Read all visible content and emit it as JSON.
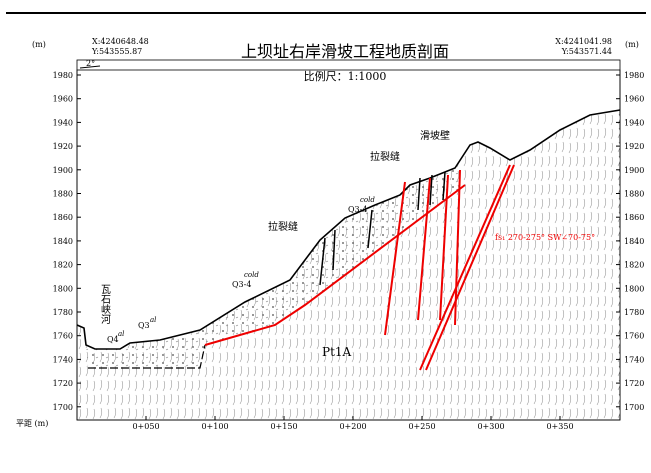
{
  "header": {
    "title": "上坝址右岸滑坡工程地质剖面",
    "scale": "比例尺：1:1000",
    "left_coord_x": "X:4240648.48",
    "left_coord_y": "Y:543555.87",
    "right_coord_x": "X:4241041.98",
    "right_coord_y": "Y:543571.44",
    "left_unit": "(m)",
    "right_unit": "(m)"
  },
  "axes": {
    "elevations": [
      1980,
      1960,
      1940,
      1920,
      1900,
      1880,
      1860,
      1840,
      1820,
      1800,
      1780,
      1760,
      1740,
      1720,
      1700
    ],
    "distance_label": "平距 (m)",
    "distances": [
      "0+050",
      "0+100",
      "0+150",
      "0+200",
      "0+250",
      "0+300",
      "0+350"
    ]
  },
  "annotations": {
    "dip": "2°",
    "scarp": "滑坡壁",
    "crack_1": "拉裂缝",
    "crack_2": "拉裂缝",
    "river": "瓦石峡河",
    "q34_upper": "Q3-4",
    "q34_upper_sup": "cold",
    "q34_lower": "Q3-4",
    "q34_lower_sup": "cold",
    "q4": "Q4",
    "q4_sup": "al",
    "q3": "Q3",
    "q3_sup": "al",
    "bedrock": "Pt1A",
    "fault": "fs₁ 270-275° SW∠70-75°"
  }
}
